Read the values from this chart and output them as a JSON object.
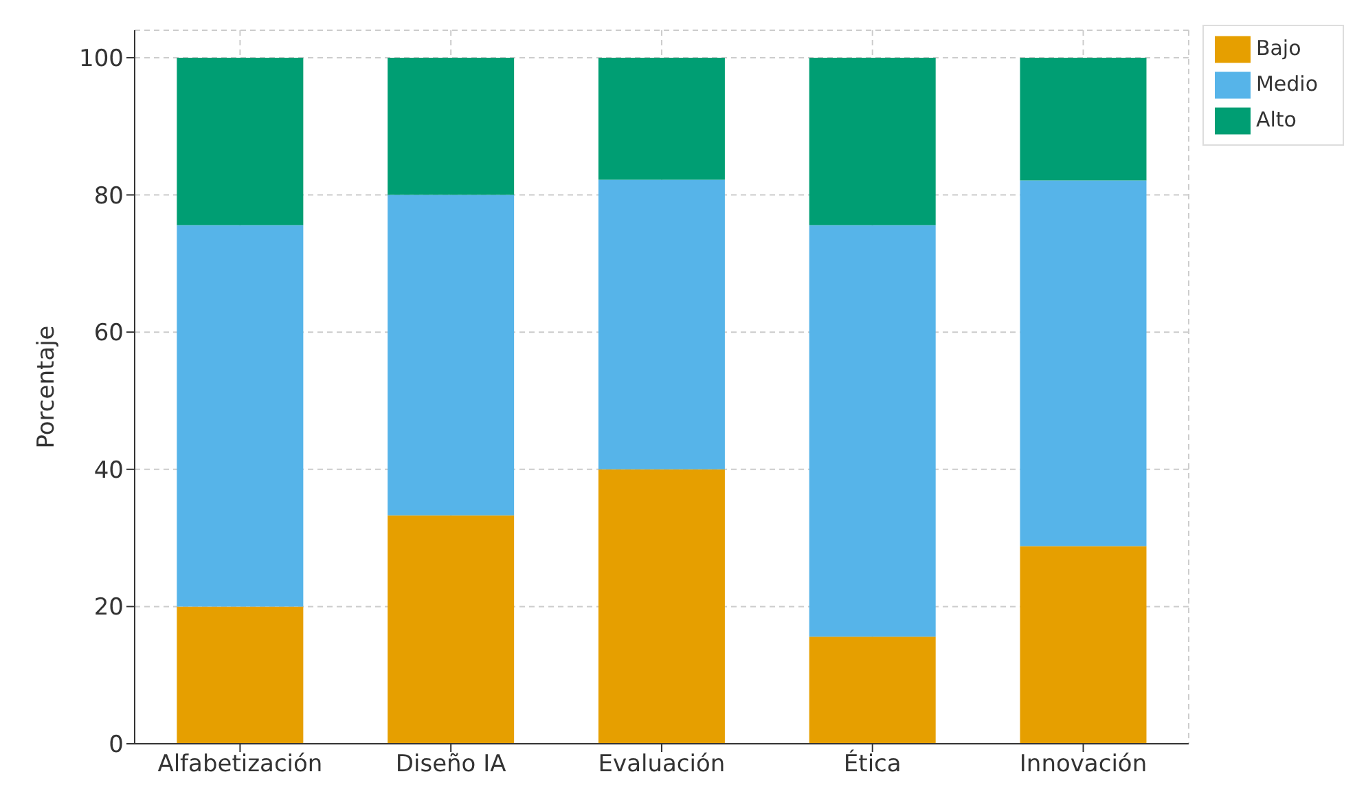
{
  "chart_data": {
    "type": "bar",
    "stacked": true,
    "ylabel": "Porcentaje",
    "categories": [
      "Alfabetización",
      "Diseño IA",
      "Evaluación",
      "Ética",
      "Innovación"
    ],
    "series": [
      {
        "name": "Bajo",
        "color": "#e69f00",
        "values": [
          20,
          33.3,
          40,
          15.6,
          28.8
        ]
      },
      {
        "name": "Medio",
        "color": "#56b4e9",
        "values": [
          55.6,
          46.7,
          42.2,
          60,
          53.3
        ]
      },
      {
        "name": "Alto",
        "color": "#009e73",
        "values": [
          24.4,
          20,
          17.8,
          24.4,
          17.9
        ]
      }
    ],
    "ylim": [
      0,
      104
    ],
    "yticks": [
      0,
      20,
      40,
      60,
      80,
      100
    ],
    "grid": true,
    "legend": "top right"
  }
}
